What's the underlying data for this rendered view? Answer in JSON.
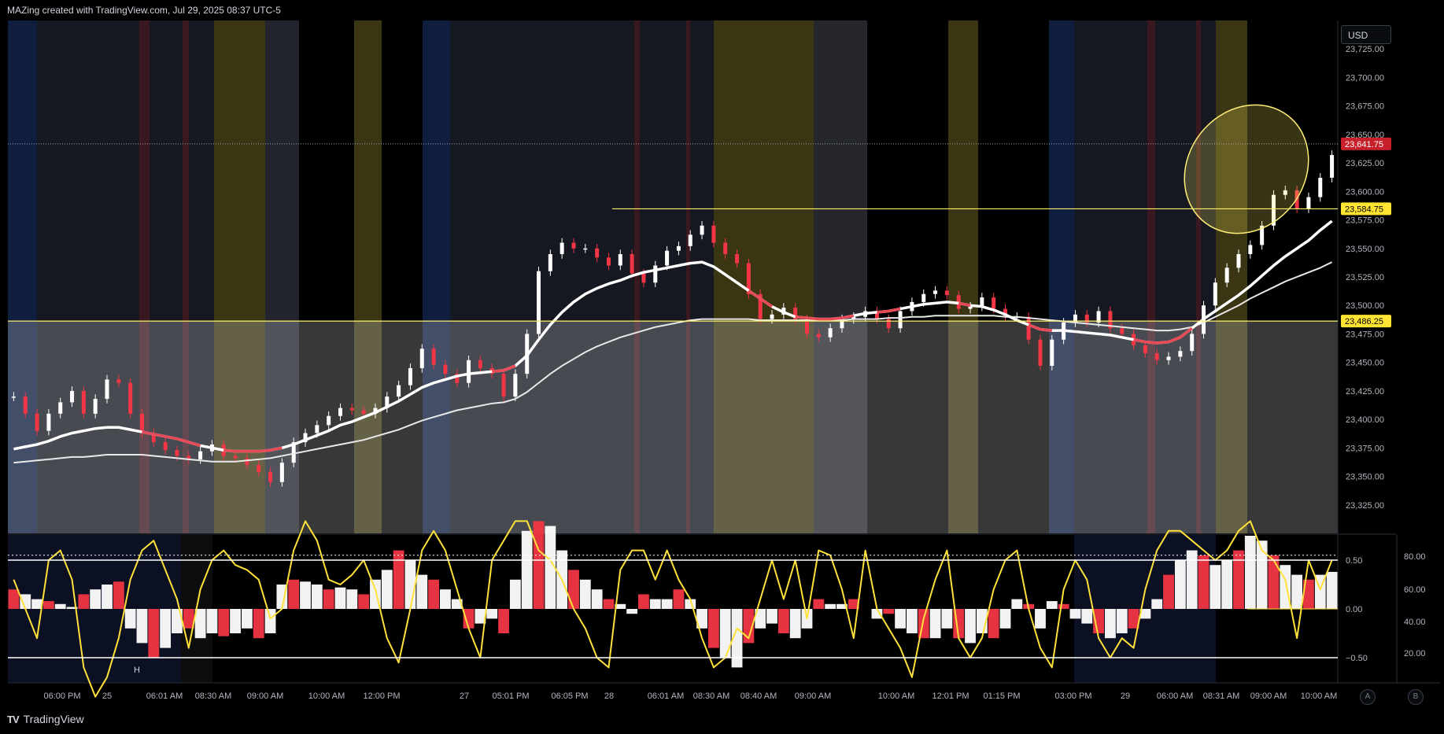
{
  "header": {
    "caption": "MAZing created with TradingView.com, Jul 29, 2025 08:37 UTC-5"
  },
  "currency_button": "USD",
  "footer": {
    "logo_text": "TradingView",
    "btn_a": "A",
    "btn_b": "B"
  },
  "colors": {
    "background": "#000000",
    "candle_up": "#ffffff",
    "candle_down": "#f23645",
    "ma_fast": "#ffffff",
    "ma_red": "#e84a57",
    "oscillator_line": "#ffe13a",
    "level_line": "#fff36b",
    "current_price_badge": "#c8202b",
    "level_badge": "#ffe433",
    "highlight_ellipse": "#ffef7a"
  },
  "chart_data": [
    {
      "type": "line",
      "name": "NQ price panel",
      "title": "",
      "ylim": [
        23300,
        23750
      ],
      "y_ticks": [
        "23,725.00",
        "23,700.00",
        "23,675.00",
        "23,650.00",
        "23,625.00",
        "23,600.00",
        "23,575.00",
        "23,550.00",
        "23,525.00",
        "23,500.00",
        "23,475.00",
        "23,450.00",
        "23,425.00",
        "23,400.00",
        "23,375.00",
        "23,350.00",
        "23,325.00"
      ],
      "x_ticks": [
        "06:00 PM",
        "25",
        "06:01 AM",
        "08:30 AM",
        "09:00 AM",
        "10:00 AM",
        "12:00 PM",
        "27",
        "05:01 PM",
        "06:05 PM",
        "28",
        "06:01 AM",
        "08:30 AM",
        "08:40 AM",
        "09:00 AM",
        "10:00 AM",
        "12:01 PM",
        "01:15 PM",
        "03:00 PM",
        "29",
        "06:00 AM",
        "08:31 AM",
        "09:00 AM",
        "10:00 AM"
      ],
      "price_labels": [
        {
          "value": 23641.75,
          "text": "23,641.75",
          "style": "current"
        },
        {
          "value": 23584.75,
          "text": "23,584.75",
          "style": "level"
        },
        {
          "value": 23486.25,
          "text": "23,486.25",
          "style": "level"
        }
      ],
      "x": [
        0,
        1,
        2,
        3,
        4,
        5,
        6,
        7,
        8,
        9,
        10,
        11,
        12,
        13,
        14,
        15,
        16,
        17,
        18,
        19,
        20,
        21,
        22,
        23,
        24,
        25,
        26,
        27,
        28,
        29,
        30,
        31,
        32,
        33,
        34,
        35,
        36,
        37,
        38,
        39,
        40,
        41,
        42,
        43,
        44,
        45,
        46,
        47,
        48,
        49,
        50,
        51,
        52,
        53,
        54,
        55,
        56,
        57,
        58,
        59,
        60,
        61,
        62,
        63,
        64,
        65,
        66,
        67,
        68,
        69,
        70,
        71,
        72,
        73,
        74,
        75,
        76,
        77,
        78,
        79,
        80,
        81,
        82,
        83,
        84,
        85,
        86,
        87,
        88,
        89,
        90,
        91,
        92,
        93,
        94,
        95,
        96,
        97,
        98,
        99,
        100,
        101,
        102,
        103,
        104,
        105,
        106,
        107,
        108,
        109,
        110,
        111,
        112,
        113
      ],
      "series": [
        {
          "values": [
            23420,
            23405,
            23390,
            23405,
            23415,
            23425,
            23405,
            23418,
            23435,
            23432,
            23405,
            23388,
            23380,
            23373,
            23368,
            23365,
            23372,
            23378,
            23368,
            23366,
            23360,
            23354,
            23345,
            23362,
            23380,
            23388,
            23395,
            23403,
            23410,
            23408,
            23405,
            23410,
            23420,
            23430,
            23445,
            23462,
            23448,
            23440,
            23432,
            23452,
            23445,
            23440,
            23420,
            23440,
            23475,
            23530,
            23545,
            23555,
            23550,
            23550,
            23542,
            23535,
            23545,
            23528,
            23520,
            23535,
            23548,
            23552,
            23562,
            23570,
            23555,
            23545,
            23537,
            23510,
            23488,
            23492,
            23498,
            23488,
            23475,
            23472,
            23480,
            23488,
            23490,
            23495,
            23488,
            23480,
            23495,
            23503,
            23510,
            23513,
            23509,
            23497,
            23499,
            23507,
            23497,
            23490,
            23490,
            23470,
            23447,
            23470,
            23485,
            23492,
            23485,
            23495,
            23480,
            23475,
            23465,
            23458,
            23452,
            23455,
            23460,
            23475,
            23500,
            23520,
            23533,
            23545,
            23553,
            23570,
            23597,
            23601,
            23585,
            23595,
            23612,
            23632
          ]
        },
        {
          "values": [
            23374,
            23376,
            23378,
            23381,
            23385,
            23388,
            23390,
            23392,
            23393,
            23393,
            23391,
            23389,
            23387,
            23385,
            23383,
            23380,
            23377,
            23375,
            23373,
            23372,
            23372,
            23372,
            23373,
            23375,
            23378,
            23382,
            23386,
            23390,
            23395,
            23398,
            23402,
            23406,
            23411,
            23416,
            23422,
            23428,
            23432,
            23435,
            23438,
            23440,
            23441,
            23442,
            23443,
            23447,
            23456,
            23470,
            23483,
            23494,
            23503,
            23510,
            23515,
            23519,
            23522,
            23526,
            23529,
            23531,
            23533,
            23535,
            23537,
            23538,
            23534,
            23527,
            23520,
            23513,
            23506,
            23499,
            23494,
            23490,
            23489,
            23488,
            23488,
            23489,
            23491,
            23493,
            23494,
            23495,
            23497,
            23499,
            23501,
            23502,
            23503,
            23502,
            23500,
            23499,
            23496,
            23492,
            23487,
            23483,
            23479,
            23478,
            23478,
            23477,
            23476,
            23475,
            23474,
            23472,
            23470,
            23468,
            23467,
            23468,
            23472,
            23480,
            23488,
            23495,
            23502,
            23509,
            23517,
            23526,
            23535,
            23543,
            23550,
            23557,
            23566,
            23574
          ]
        },
        {
          "values": [
            23362,
            23363,
            23364,
            23365,
            23366,
            23367,
            23367,
            23368,
            23369,
            23369,
            23369,
            23369,
            23368,
            23367,
            23366,
            23365,
            23364,
            23363,
            23363,
            23363,
            23364,
            23365,
            23366,
            23368,
            23370,
            23372,
            23374,
            23376,
            23378,
            23380,
            23382,
            23385,
            23388,
            23391,
            23395,
            23399,
            23402,
            23405,
            23408,
            23410,
            23412,
            23414,
            23415,
            23418,
            23424,
            23432,
            23440,
            23447,
            23453,
            23459,
            23464,
            23468,
            23472,
            23475,
            23478,
            23481,
            23483,
            23485,
            23487,
            23488,
            23488,
            23488,
            23488,
            23488,
            23487,
            23487,
            23487,
            23487,
            23487,
            23487,
            23487,
            23487,
            23488,
            23488,
            23488,
            23489,
            23489,
            23490,
            23490,
            23491,
            23491,
            23491,
            23491,
            23491,
            23491,
            23490,
            23490,
            23489,
            23488,
            23487,
            23486,
            23485,
            23484,
            23483,
            23482,
            23481,
            23480,
            23479,
            23478,
            23478,
            23479,
            23481,
            23485,
            23490,
            23495,
            23500,
            23506,
            23511,
            23516,
            23521,
            23525,
            23529,
            23533,
            23538
          ]
        }
      ]
    },
    {
      "type": "bar",
      "name": "Oscillator panel",
      "ylim": [
        -1,
        1
      ],
      "y_ticks_left": [
        "0.50",
        "0.00",
        "−0.50"
      ],
      "y_ticks_right": [
        "80.00",
        "60.00",
        "40.00",
        "20.00"
      ],
      "reference_lines": [
        0.5,
        -0.5
      ],
      "annotations": [
        "H"
      ],
      "values": [
        0.2,
        0.15,
        0.1,
        0.08,
        0.05,
        0.02,
        0.15,
        0.2,
        0.25,
        0.28,
        -0.2,
        -0.35,
        -0.5,
        -0.4,
        -0.25,
        -0.2,
        -0.3,
        -0.25,
        -0.28,
        -0.25,
        -0.2,
        -0.3,
        -0.25,
        0.25,
        0.3,
        0.28,
        0.25,
        0.2,
        0.22,
        0.2,
        0.15,
        0.3,
        0.4,
        0.6,
        0.5,
        0.35,
        0.3,
        0.2,
        0.1,
        -0.2,
        -0.15,
        -0.1,
        -0.25,
        0.3,
        0.8,
        0.9,
        0.85,
        0.6,
        0.4,
        0.3,
        0.2,
        0.1,
        0.05,
        -0.05,
        0.15,
        0.1,
        0.1,
        0.2,
        0.1,
        -0.2,
        -0.4,
        -0.5,
        -0.6,
        -0.35,
        -0.2,
        -0.15,
        -0.25,
        -0.3,
        -0.2,
        0.1,
        0.05,
        0.05,
        0.1,
        0.0,
        -0.1,
        -0.05,
        -0.2,
        -0.25,
        -0.3,
        -0.3,
        -0.2,
        -0.3,
        -0.35,
        -0.25,
        -0.3,
        -0.2,
        0.1,
        0.05,
        -0.2,
        0.08,
        0.05,
        -0.1,
        -0.15,
        -0.25,
        -0.3,
        -0.25,
        -0.2,
        -0.1,
        0.1,
        0.35,
        0.5,
        0.6,
        0.55,
        0.45,
        0.5,
        0.6,
        0.75,
        0.7,
        0.55,
        0.45,
        0.35,
        0.3,
        0.35,
        0.38
      ],
      "series": [
        {
          "values": [
            0.3,
            0.0,
            -0.3,
            0.5,
            0.6,
            0.3,
            -0.6,
            -0.9,
            -0.7,
            -0.3,
            0.3,
            0.6,
            0.7,
            0.4,
            0.1,
            -0.4,
            0.2,
            0.5,
            0.6,
            0.45,
            0.4,
            0.3,
            -0.1,
            0.0,
            0.6,
            0.9,
            0.7,
            0.3,
            0.25,
            0.35,
            0.5,
            0.2,
            -0.3,
            -0.55,
            0.0,
            0.6,
            0.8,
            0.6,
            0.2,
            -0.2,
            -0.5,
            0.5,
            0.7,
            0.9,
            0.9,
            0.6,
            0.5,
            0.3,
            0.0,
            -0.2,
            -0.5,
            -0.6,
            0.4,
            0.6,
            0.6,
            0.3,
            0.6,
            0.3,
            0.1,
            -0.3,
            -0.6,
            -0.5,
            -0.2,
            -0.3,
            0.1,
            0.5,
            0.1,
            0.5,
            -0.1,
            0.6,
            0.55,
            0.2,
            -0.3,
            0.6,
            0.0,
            -0.2,
            -0.4,
            -0.7,
            -0.1,
            0.3,
            0.6,
            -0.3,
            -0.5,
            -0.3,
            0.2,
            0.5,
            0.6,
            0.0,
            -0.4,
            -0.6,
            0.2,
            0.5,
            0.3,
            -0.3,
            -0.5,
            -0.3,
            -0.4,
            0.2,
            0.6,
            0.8,
            0.8,
            0.7,
            0.6,
            0.5,
            0.6,
            0.8,
            0.9,
            0.6,
            0.5,
            0.3,
            -0.3,
            0.5,
            0.2,
            0.5
          ]
        }
      ]
    }
  ]
}
